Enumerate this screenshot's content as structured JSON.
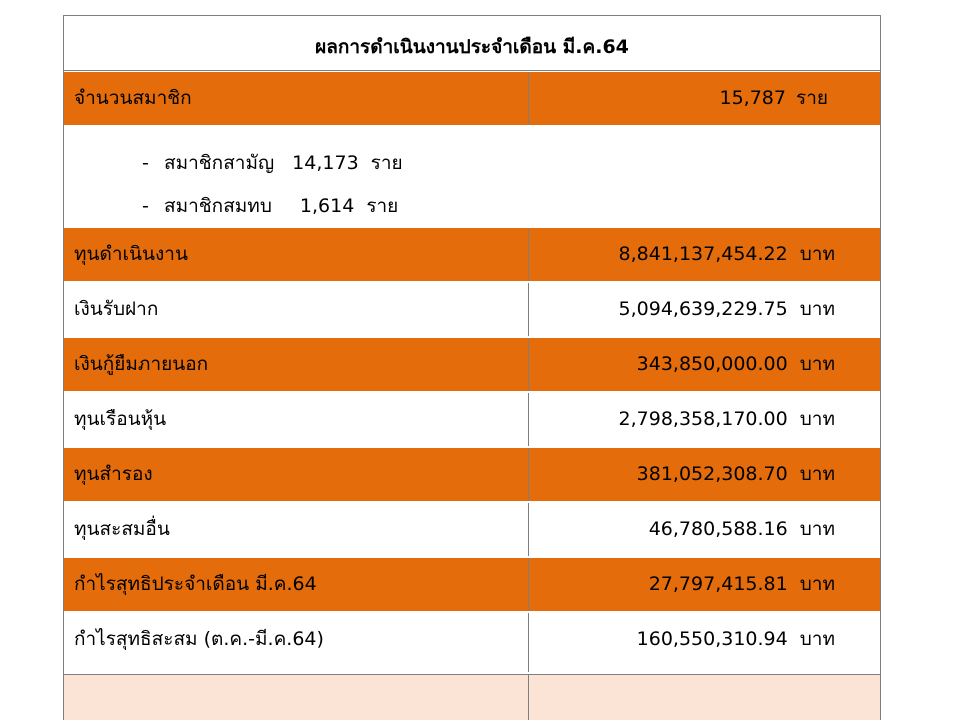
{
  "title": "ผลการดำเนินงานประจำเดือน  มี.ค.64",
  "members": {
    "label": "จำนวนสมาชิก",
    "value": "15,787",
    "unit": "ราย"
  },
  "member_breakdown": [
    {
      "dash": "-",
      "label": "สมาชิกสามัญ",
      "value": "14,173",
      "unit": "ราย"
    },
    {
      "dash": "-",
      "label": "สมาชิกสมทบ",
      "value": "1,614",
      "unit": "ราย"
    }
  ],
  "financials": [
    {
      "label": "ทุนดำเนินงาน",
      "value": "8,841,137,454.22",
      "unit": "บาท"
    },
    {
      "label": "เงินรับฝาก",
      "value": "5,094,639,229.75",
      "unit": "บาท"
    },
    {
      "label": "เงินกู้ยืมภายนอก",
      "value": "343,850,000.00",
      "unit": "บาท"
    },
    {
      "label": "ทุนเรือนหุ้น",
      "value": "2,798,358,170.00",
      "unit": "บาท"
    },
    {
      "label": "ทุนสำรอง",
      "value": "381,052,308.70",
      "unit": "บาท"
    },
    {
      "label": "ทุนสะสมอื่น",
      "value": "46,780,588.16",
      "unit": "บาท"
    },
    {
      "label": "กำไรสุทธิประจำเดือน มี.ค.64",
      "value": "27,797,415.81",
      "unit": "บาท"
    },
    {
      "label": "กำไรสุทธิสะสม (ต.ค.-มี.ค.64)",
      "value": "160,550,310.94",
      "unit": "บาท"
    }
  ],
  "colors": {
    "row_orange": "#e46c0a",
    "row_white": "#ffffff",
    "row_peach": "#fbe4d5",
    "border": "#7f7f7f"
  }
}
